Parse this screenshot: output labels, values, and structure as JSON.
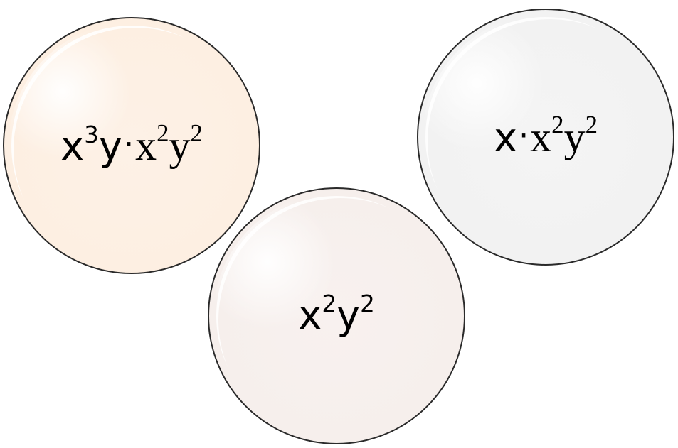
{
  "bubbles": [
    {
      "id": "left",
      "expression": "x³y·x²y²",
      "parts": {
        "a": "x",
        "a_exp": "3",
        "b": "y",
        "dot": "·",
        "c": "x",
        "c_exp": "2",
        "d": "y",
        "d_exp": "2"
      },
      "fill_color": "#fdefe2",
      "rim_color": "#e8843b"
    },
    {
      "id": "right",
      "expression": "x·x²y²",
      "parts": {
        "a": "x",
        "dot": "·",
        "c": "x",
        "c_exp": "2",
        "d": "y",
        "d_exp": "2"
      },
      "fill_color": "#f2f2f2",
      "rim_color": "#a9a9a9"
    },
    {
      "id": "bottom",
      "expression": "x²y²",
      "parts": {
        "a": "x",
        "a_exp": "2",
        "b": "y",
        "b_exp": "2"
      },
      "fill_color": "#f6efec",
      "rim_color": "#c48f82"
    }
  ]
}
